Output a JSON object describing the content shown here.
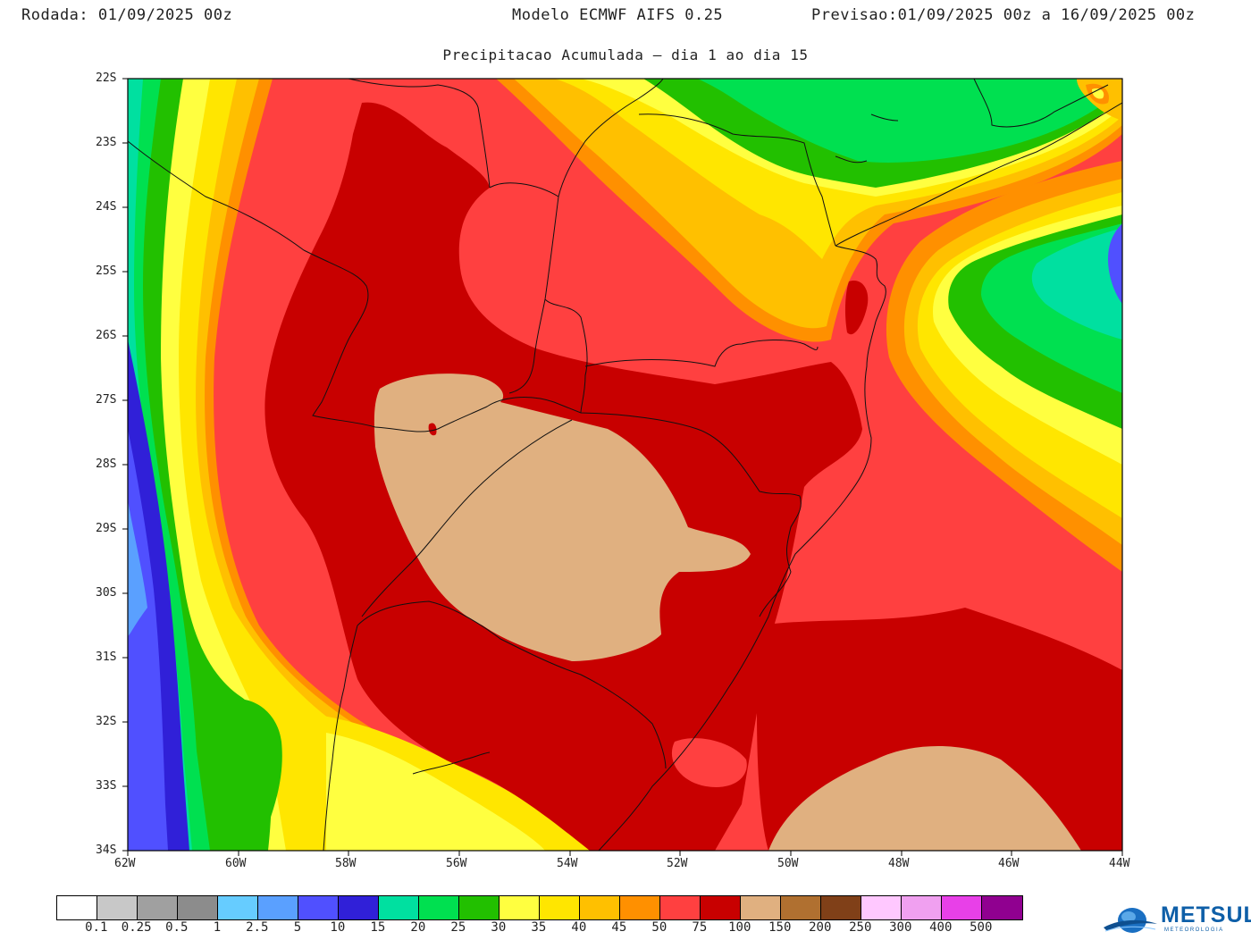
{
  "header": {
    "rodada_label": "Rodada:",
    "rodada_value": "01/09/2025 00z",
    "model": "Modelo ECMWF AIFS 0.25",
    "previsao_label": "Previsao:",
    "previsao_value": "01/09/2025 00z a 16/09/2025 00z",
    "subtitle": "Precipitacao Acumulada — dia 1 ao dia 15"
  },
  "map": {
    "lat_ticks": [
      "22S",
      "23S",
      "24S",
      "25S",
      "26S",
      "27S",
      "28S",
      "29S",
      "30S",
      "31S",
      "32S",
      "33S",
      "34S"
    ],
    "lon_ticks": [
      "62W",
      "60W",
      "58W",
      "56W",
      "54W",
      "52W",
      "50W",
      "48W",
      "46W",
      "44W"
    ],
    "background_color": "#ff4040"
  },
  "legend": {
    "colors": [
      "#ffffff",
      "#c8c8c8",
      "#a0a0a0",
      "#8c8c8c",
      "#66ccff",
      "#5aa0ff",
      "#5050ff",
      "#3020d8",
      "#00e0a0",
      "#00e050",
      "#22c000",
      "#ffff40",
      "#ffe600",
      "#ffc000",
      "#ff9000",
      "#ff4040",
      "#c80000",
      "#e0b080",
      "#b07030",
      "#804018",
      "#ffc8ff",
      "#f0a0f0",
      "#e840e8",
      "#900090"
    ],
    "labels": [
      "0.1",
      "0.25",
      "0.5",
      "1",
      "2.5",
      "5",
      "10",
      "15",
      "20",
      "25",
      "30",
      "35",
      "40",
      "45",
      "50",
      "75",
      "100",
      "150",
      "200",
      "250",
      "300",
      "400",
      "500"
    ]
  },
  "logo": {
    "name": "METSUL",
    "subtext": "METEOROLOGIA"
  }
}
